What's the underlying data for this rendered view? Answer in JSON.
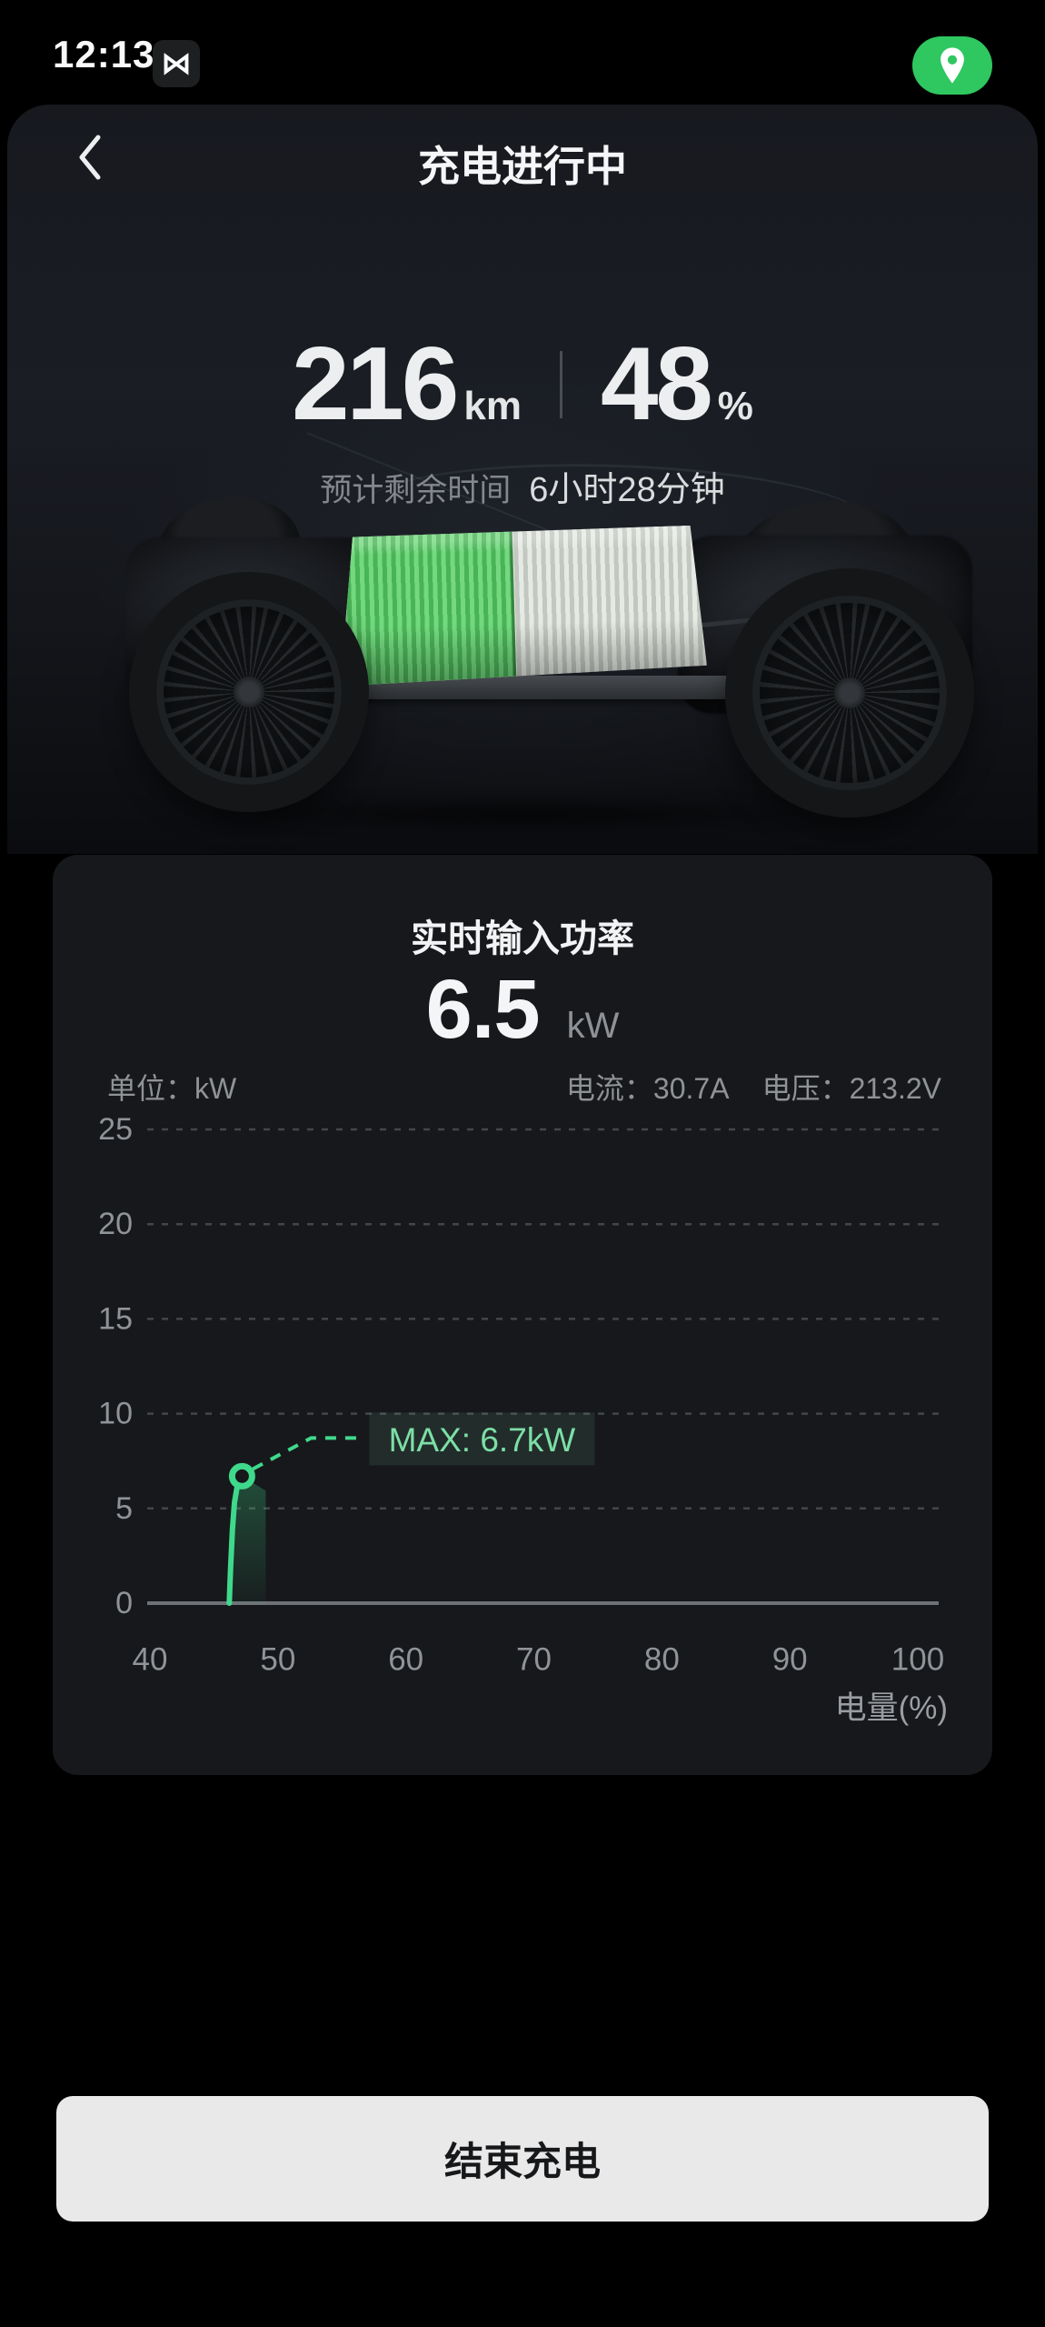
{
  "status_bar": {
    "time": "12:13",
    "network_icon_glyph": "⋈",
    "location_pill_color": "#2fc75f"
  },
  "header": {
    "title": "充电进行中"
  },
  "charging": {
    "range_value": "216",
    "range_unit": "km",
    "soc_value": "48",
    "soc_unit": "%",
    "eta_label": "预计剩余时间",
    "eta_value": "6小时28分钟",
    "battery_soc_percent": 48
  },
  "power_card": {
    "title": "实时输入功率",
    "power_value": "6.5",
    "power_unit": "kW",
    "unit_label": "单位：kW",
    "current_label": "电流：30.7A",
    "voltage_label": "电压：213.2V"
  },
  "chart_data": {
    "type": "line",
    "title": "实时输入功率",
    "xlabel": "电量(%)",
    "ylabel": "kW",
    "xlim": [
      40,
      100
    ],
    "ylim": [
      0,
      25
    ],
    "x_ticks": [
      40,
      50,
      60,
      70,
      80,
      90,
      100
    ],
    "y_ticks": [
      0,
      5,
      10,
      15,
      20,
      25
    ],
    "grid": "horizontal-dashed",
    "legend_position": "none",
    "series": [
      {
        "name": "实时输入功率",
        "color": "#3fd98c",
        "points": [
          [
            46.2,
            0
          ],
          [
            46.3,
            1.8
          ],
          [
            46.45,
            3.9
          ],
          [
            46.6,
            5.3
          ],
          [
            46.8,
            6.1
          ],
          [
            47.0,
            6.5
          ],
          [
            47.2,
            6.7
          ]
        ]
      }
    ],
    "annotation": {
      "text": "MAX: 6.7kW",
      "x": 47.2,
      "y": 6.7
    }
  },
  "footer": {
    "end_button_label": "结束充电"
  },
  "colors": {
    "accent_green": "#3fd98c",
    "pill_green": "#2fc75f",
    "card_bg": "#17181b",
    "button_bg": "#e9e9ea",
    "text_gray": "#8f9396"
  }
}
